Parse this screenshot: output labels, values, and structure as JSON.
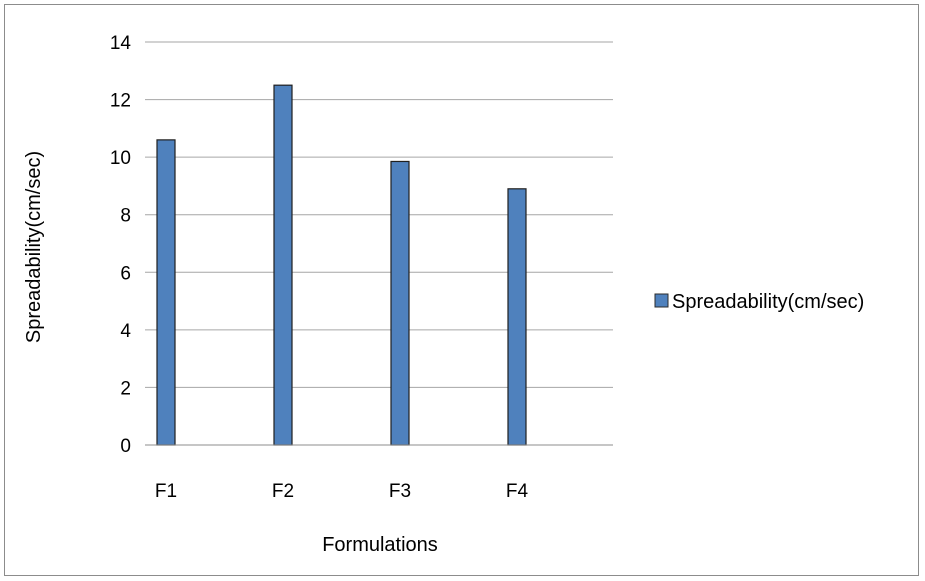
{
  "chart_data": {
    "type": "bar",
    "categories": [
      "F1",
      "F2",
      "F3",
      "F4"
    ],
    "series": [
      {
        "name": "Spreadability(cm/sec)",
        "values": [
          10.6,
          12.5,
          9.85,
          8.9
        ],
        "color": "#4f81bd"
      }
    ],
    "xlabel": "Formulations",
    "ylabel": "Spreadability(cm/sec)",
    "ylim": [
      0,
      14
    ],
    "yticks": [
      0,
      2,
      4,
      6,
      8,
      10,
      12,
      14
    ],
    "grid": true,
    "legend_position": "right"
  }
}
